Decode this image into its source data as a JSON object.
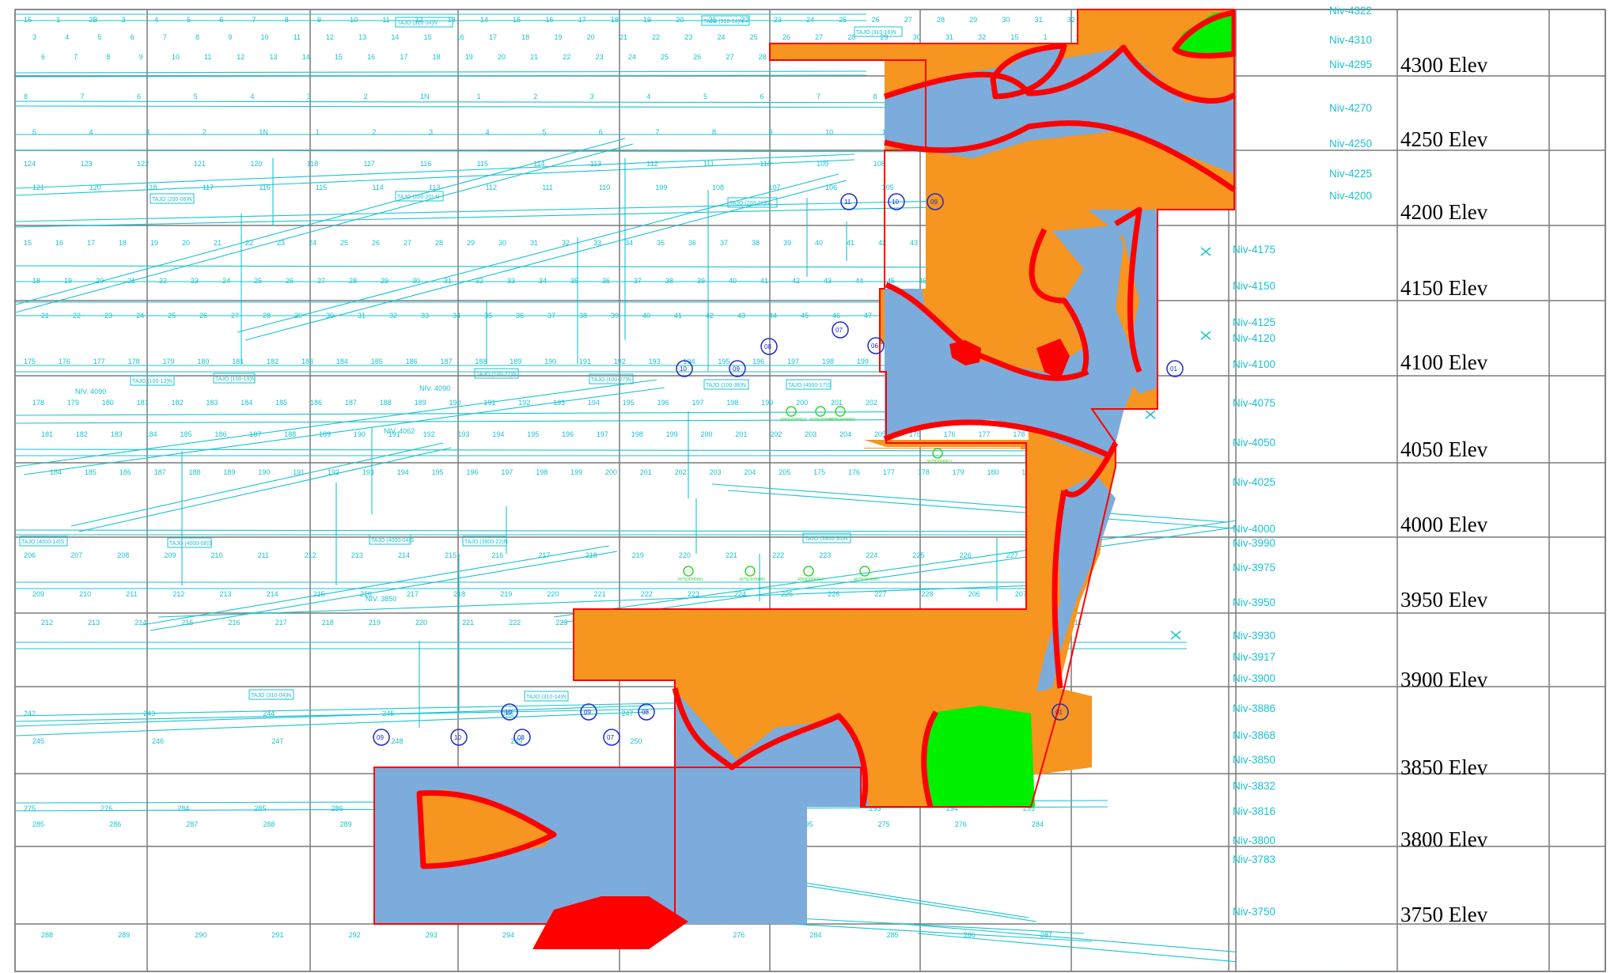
{
  "elevation_labels": [
    "4300 Elev",
    "4250 Elev",
    "4200 Elev",
    "4150 Elev",
    "4100 Elev",
    "4050 Elev",
    "4000 Elev",
    "3950 Elev",
    "3900 Elev",
    "3850 Elev",
    "3800 Elev",
    "3750 Elev"
  ],
  "level_labels": [
    "Niv-4322",
    "Niv-4310",
    "Niv-4295",
    "Niv-4270",
    "Niv-4250",
    "Niv-4225",
    "Niv-4200",
    "Niv-4175",
    "Niv-4150",
    "Niv-4125",
    "Niv-4120",
    "Niv-4100",
    "Niv-4075",
    "Niv-4050",
    "Niv-4025",
    "Niv-4000",
    "Niv-3990",
    "Niv-3975",
    "Niv-3950",
    "Niv-3930",
    "Niv-3917",
    "Niv-3900",
    "Niv-3886",
    "Niv-3868",
    "Niv-3850",
    "Niv-3832",
    "Niv-3816",
    "Niv-3800",
    "Niv-3783",
    "Niv-3750"
  ],
  "level_markers": [
    "NIV. 4090",
    "NIV. 4090",
    "NIV. 4062",
    "NIV. 3850"
  ],
  "stope_labels": [
    "TAJO (310-04)N",
    "TAJO (310-14)N",
    "TAJO (310-16)N",
    "TAJO (200-06)N",
    "TAJO (200-20)-N",
    "TAJO (200-22)N",
    "TAJO (100-13)N",
    "TAJO (100-19)N",
    "TAJO (100-22)N",
    "TAJO (100-27)N",
    "TAJO (100-36)N",
    "TAJO (4000-17)S",
    "TAJO (4000-14)S",
    "TAJO (4000-08)S",
    "TAJO (4000-04)S",
    "TAJO (3900-22)N",
    "TAJO (3900-30)N"
  ],
  "marker_circles": [
    "11",
    "10",
    "09",
    "08",
    "07",
    "06",
    "10",
    "09",
    "01",
    "10",
    "09",
    "08",
    "10",
    "09",
    "08",
    "07",
    "01"
  ],
  "drill_holes": [
    "4050DDH0012",
    "4075DDH0007",
    "4075DDH0009",
    "3975DDH0011",
    "3975DDH0001",
    "3975DDH0006"
  ],
  "station_numbers": {
    "r4300": [
      "15",
      "1",
      "2B",
      "3",
      "4",
      "5",
      "6",
      "7",
      "8",
      "9",
      "10",
      "11",
      "12",
      "13",
      "14",
      "15",
      "16",
      "17",
      "18",
      "19",
      "20",
      "21",
      "22",
      "23",
      "24",
      "25",
      "26",
      "27",
      "28",
      "29",
      "30",
      "31",
      "32"
    ],
    "r4250": [
      "8",
      "7",
      "6",
      "5",
      "4",
      "3",
      "2",
      "1N",
      "1",
      "2",
      "3",
      "4",
      "5",
      "6",
      "7",
      "8",
      "9",
      "10",
      "11"
    ],
    "r4200": [
      "124",
      "123",
      "122",
      "121",
      "120",
      "118",
      "117",
      "116",
      "115",
      "114",
      "113",
      "112",
      "111",
      "110",
      "109",
      "108",
      "107",
      "106",
      "105"
    ],
    "r4150": [
      "15",
      "16",
      "17",
      "18",
      "19",
      "20",
      "21",
      "22",
      "23",
      "24",
      "25",
      "26",
      "27",
      "28",
      "29",
      "30",
      "31",
      "32",
      "33",
      "34",
      "35",
      "36",
      "37",
      "38",
      "39",
      "40",
      "41",
      "42",
      "43",
      "44",
      "45",
      "46",
      "47",
      "48"
    ],
    "r4100": [
      "175",
      "176",
      "177",
      "178",
      "179",
      "180",
      "181",
      "182",
      "183",
      "184",
      "185",
      "186",
      "187",
      "188",
      "189",
      "190",
      "191",
      "192",
      "193",
      "194",
      "195",
      "196",
      "197",
      "198",
      "199",
      "200",
      "201",
      "202",
      "203",
      "204",
      "205"
    ],
    "r3950": [
      "206",
      "207",
      "208",
      "209",
      "210",
      "211",
      "212",
      "213",
      "214",
      "215",
      "216",
      "217",
      "218",
      "219",
      "220",
      "221",
      "222",
      "223",
      "224",
      "225",
      "226",
      "227",
      "228"
    ],
    "r3850": [
      "242",
      "243",
      "244",
      "245",
      "246",
      "247",
      "248",
      "249",
      "250"
    ],
    "r3750": [
      "275",
      "276",
      "284",
      "285",
      "286",
      "287",
      "288",
      "289",
      "290",
      "291",
      "292",
      "293",
      "294",
      "295"
    ]
  },
  "colors": {
    "ore_zone": "#f6951f",
    "host_zone": "#7bacdc",
    "high_grade": "#00f100",
    "boundary": "#ff0000",
    "drift_lines": "#19c3cf",
    "markers": "#1e2bc9",
    "drillholes": "#39d335",
    "grid": "#7a7a7a"
  },
  "cross_markers": 7
}
